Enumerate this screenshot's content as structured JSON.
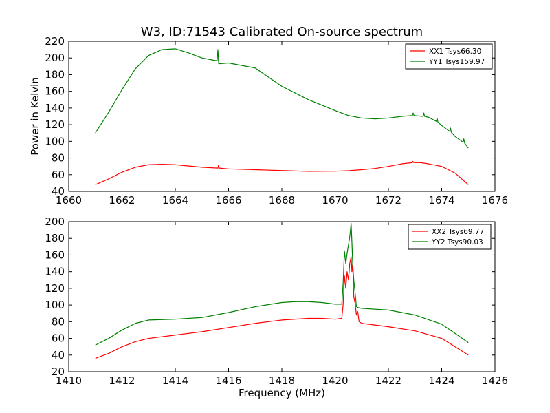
{
  "chart_data": [
    {
      "type": "line",
      "title": "W3, ID:71543 Calibrated On-source spectrum",
      "xlabel": "",
      "ylabel": "Power in Kelvin",
      "xlim": [
        1660,
        1676
      ],
      "ylim": [
        40,
        220
      ],
      "xticks": [
        1660,
        1662,
        1664,
        1666,
        1668,
        1670,
        1672,
        1674,
        1676
      ],
      "yticks": [
        40,
        60,
        80,
        100,
        120,
        140,
        160,
        180,
        200,
        220
      ],
      "legend_position": "top-right",
      "series": [
        {
          "name": "XX1 Tsys66.30",
          "color": "#ff0000",
          "points": [
            [
              1661.0,
              48
            ],
            [
              1661.5,
              55
            ],
            [
              1662.0,
              63
            ],
            [
              1662.5,
              69
            ],
            [
              1663.0,
              72
            ],
            [
              1663.5,
              72.5
            ],
            [
              1664.0,
              72
            ],
            [
              1665.0,
              69
            ],
            [
              1665.6,
              68
            ],
            [
              1665.62,
              71
            ],
            [
              1665.65,
              68
            ],
            [
              1666.0,
              67
            ],
            [
              1667.0,
              66
            ],
            [
              1668.0,
              65
            ],
            [
              1669.0,
              64
            ],
            [
              1670.0,
              64.2
            ],
            [
              1670.5,
              64.8
            ],
            [
              1671.0,
              66
            ],
            [
              1671.5,
              67.5
            ],
            [
              1672.0,
              70
            ],
            [
              1672.5,
              73
            ],
            [
              1672.9,
              74.5
            ],
            [
              1672.92,
              76
            ],
            [
              1672.95,
              74.5
            ],
            [
              1673.2,
              74.5
            ],
            [
              1673.5,
              73
            ],
            [
              1674.0,
              70
            ],
            [
              1674.5,
              62
            ],
            [
              1675.0,
              48
            ]
          ]
        },
        {
          "name": "YY1 Tsys159.97",
          "color": "#008000",
          "points": [
            [
              1661.0,
              110
            ],
            [
              1661.5,
              135
            ],
            [
              1662.0,
              162
            ],
            [
              1662.5,
              187
            ],
            [
              1663.0,
              203
            ],
            [
              1663.5,
              210
            ],
            [
              1664.0,
              211
            ],
            [
              1664.5,
              206
            ],
            [
              1665.0,
              200
            ],
            [
              1665.5,
              197
            ],
            [
              1665.57,
              197
            ],
            [
              1665.6,
              210
            ],
            [
              1665.63,
              193
            ],
            [
              1666.0,
              194
            ],
            [
              1667.0,
              188
            ],
            [
              1668.0,
              166
            ],
            [
              1669.0,
              150
            ],
            [
              1670.0,
              137
            ],
            [
              1670.5,
              131
            ],
            [
              1671.0,
              128
            ],
            [
              1671.5,
              127
            ],
            [
              1672.0,
              128
            ],
            [
              1672.5,
              130
            ],
            [
              1672.9,
              131
            ],
            [
              1672.93,
              134
            ],
            [
              1672.96,
              131
            ],
            [
              1673.3,
              130
            ],
            [
              1673.33,
              134
            ],
            [
              1673.36,
              130
            ],
            [
              1673.5,
              129
            ],
            [
              1673.8,
              124
            ],
            [
              1673.83,
              128
            ],
            [
              1673.86,
              123
            ],
            [
              1674.0,
              119
            ],
            [
              1674.3,
              112
            ],
            [
              1674.33,
              116
            ],
            [
              1674.36,
              111
            ],
            [
              1674.5,
              106
            ],
            [
              1674.8,
              99
            ],
            [
              1674.83,
              103
            ],
            [
              1674.86,
              98
            ],
            [
              1675.0,
              92
            ]
          ]
        }
      ]
    },
    {
      "type": "line",
      "title": "",
      "xlabel": "Frequency (MHz)",
      "ylabel": "",
      "xlim": [
        1410,
        1426
      ],
      "ylim": [
        20,
        200
      ],
      "xticks": [
        1410,
        1412,
        1414,
        1416,
        1418,
        1420,
        1422,
        1424,
        1426
      ],
      "yticks": [
        20,
        40,
        60,
        80,
        100,
        120,
        140,
        160,
        180,
        200
      ],
      "legend_position": "top-right",
      "series": [
        {
          "name": "XX2 Tsys69.77",
          "color": "#ff0000",
          "points": [
            [
              1411.0,
              36
            ],
            [
              1411.5,
              42
            ],
            [
              1412.0,
              50
            ],
            [
              1412.5,
              56
            ],
            [
              1413.0,
              60
            ],
            [
              1414.0,
              64
            ],
            [
              1415.0,
              68
            ],
            [
              1416.0,
              73
            ],
            [
              1417.0,
              78
            ],
            [
              1418.0,
              82
            ],
            [
              1419.0,
              84
            ],
            [
              1419.5,
              84
            ],
            [
              1420.0,
              83
            ],
            [
              1420.25,
              84
            ],
            [
              1420.3,
              100
            ],
            [
              1420.35,
              135
            ],
            [
              1420.4,
              120
            ],
            [
              1420.45,
              140
            ],
            [
              1420.5,
              130
            ],
            [
              1420.55,
              150
            ],
            [
              1420.6,
              158
            ],
            [
              1420.63,
              140
            ],
            [
              1420.66,
              150
            ],
            [
              1420.7,
              110
            ],
            [
              1420.75,
              102
            ],
            [
              1420.8,
              88
            ],
            [
              1420.85,
              92
            ],
            [
              1420.9,
              80
            ],
            [
              1421.0,
              78
            ],
            [
              1422.0,
              74
            ],
            [
              1423.0,
              69
            ],
            [
              1424.0,
              60
            ],
            [
              1424.5,
              50
            ],
            [
              1425.0,
              40
            ]
          ]
        },
        {
          "name": "YY2 Tsys90.03",
          "color": "#008000",
          "points": [
            [
              1411.0,
              52
            ],
            [
              1411.5,
              60
            ],
            [
              1412.0,
              70
            ],
            [
              1412.5,
              78
            ],
            [
              1413.0,
              82
            ],
            [
              1414.0,
              83
            ],
            [
              1415.0,
              85
            ],
            [
              1416.0,
              91
            ],
            [
              1417.0,
              98
            ],
            [
              1418.0,
              103
            ],
            [
              1418.5,
              104
            ],
            [
              1419.0,
              104
            ],
            [
              1419.5,
              103
            ],
            [
              1420.0,
              101
            ],
            [
              1420.25,
              101
            ],
            [
              1420.3,
              125
            ],
            [
              1420.35,
              165
            ],
            [
              1420.4,
              150
            ],
            [
              1420.45,
              162
            ],
            [
              1420.5,
              172
            ],
            [
              1420.55,
              182
            ],
            [
              1420.6,
              198
            ],
            [
              1420.63,
              176
            ],
            [
              1420.66,
              150
            ],
            [
              1420.7,
              130
            ],
            [
              1420.75,
              115
            ],
            [
              1420.8,
              98
            ],
            [
              1420.85,
              97
            ],
            [
              1421.0,
              96
            ],
            [
              1422.0,
              94
            ],
            [
              1423.0,
              88
            ],
            [
              1424.0,
              77
            ],
            [
              1424.5,
              66
            ],
            [
              1425.0,
              55
            ]
          ]
        }
      ]
    }
  ]
}
